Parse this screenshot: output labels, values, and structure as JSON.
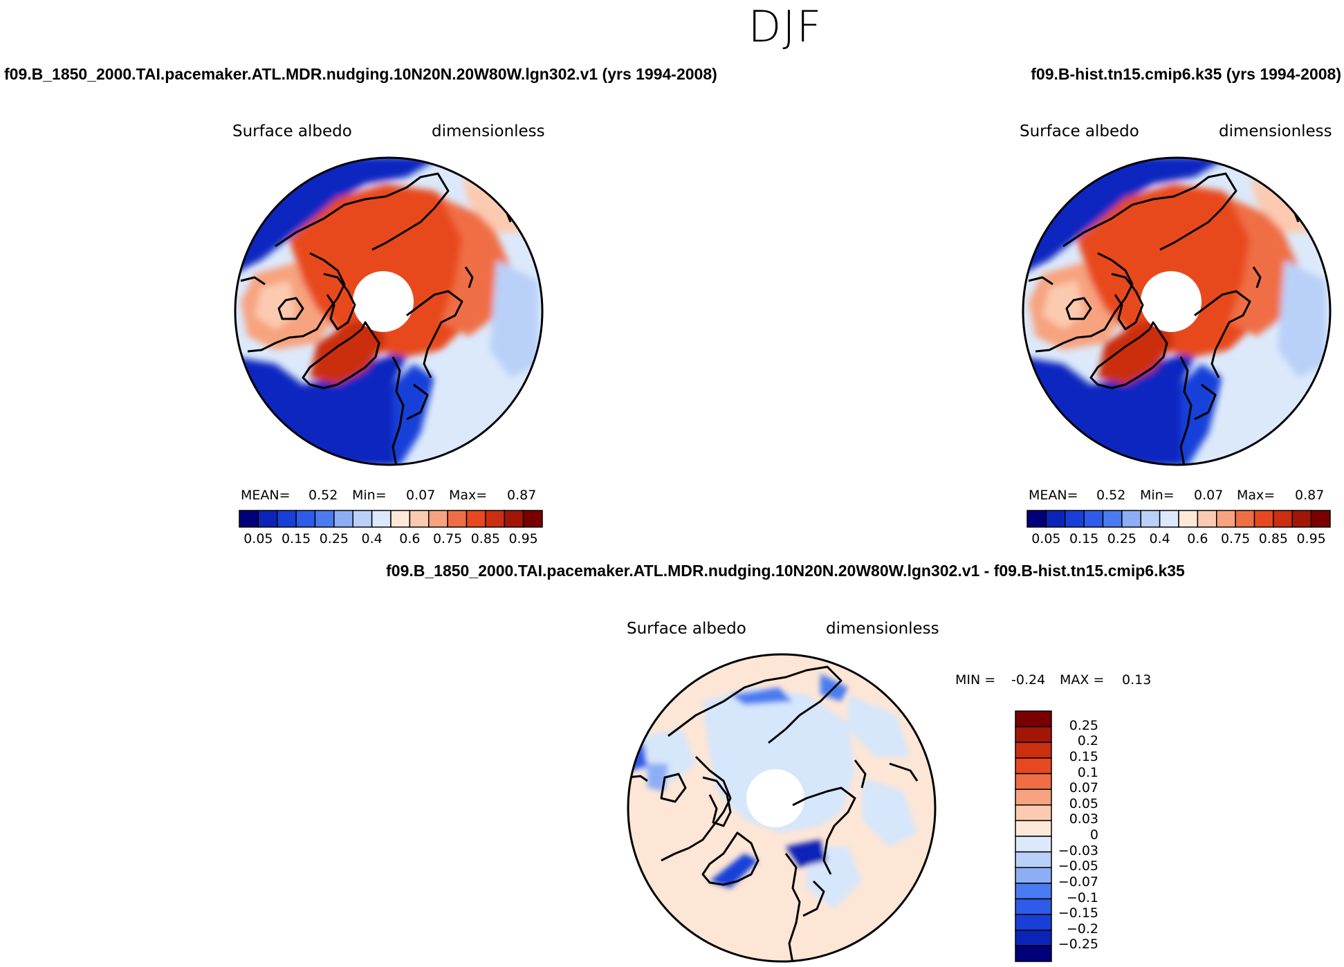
{
  "season": "DJF",
  "panels": [
    {
      "case": "f09.B_1850_2000.TAI.pacemaker.ATL.MDR.nudging.10N20N.20W80W.lgn302.v1 (yrs 1994-2008)",
      "variable": "Surface albedo",
      "units": "dimensionless",
      "stats": {
        "mean_label": "MEAN=",
        "mean": "0.52",
        "min_label": "Min=",
        "min": "0.07",
        "max_label": "Max=",
        "max": "0.87"
      }
    },
    {
      "case": "f09.B-hist.tn15.cmip6.k35 (yrs 1994-2008)",
      "variable": "Surface albedo",
      "units": "dimensionless",
      "stats": {
        "mean_label": "MEAN=",
        "mean": "0.52",
        "min_label": "Min=",
        "min": "0.07",
        "max_label": "Max=",
        "max": "0.87"
      }
    }
  ],
  "diff_panel": {
    "case": "f09.B_1850_2000.TAI.pacemaker.ATL.MDR.nudging.10N20N.20W80W.lgn302.v1 - f09.B-hist.tn15.cmip6.k35",
    "variable": "Surface albedo",
    "units": "dimensionless",
    "stats": {
      "min_label": "MIN =",
      "min": "-0.24",
      "max_label": "MAX =",
      "max": "0.13"
    }
  },
  "colors": {
    "abs_colorbar": [
      "#00007a",
      "#0b24b8",
      "#1840d8",
      "#2c5ce8",
      "#4a7bf0",
      "#8caef5",
      "#b9d0f8",
      "#dce9fb",
      "#fee9d9",
      "#fbcab0",
      "#f7a37f",
      "#f06e45",
      "#e8481f",
      "#cb2f10",
      "#a31606",
      "#7a0000"
    ],
    "diff_colorbar": [
      "#00007a",
      "#0b24b8",
      "#1840d8",
      "#2c5ce8",
      "#4a7bf0",
      "#8caef5",
      "#b9d0f8",
      "#dce9fb",
      "#fee9d9",
      "#fbcab0",
      "#f7a37f",
      "#f06e45",
      "#e8481f",
      "#cb2f10",
      "#a31606",
      "#7a0000"
    ],
    "ocean_blue": "#0b28c0",
    "land_orange": "#e8481f",
    "diff_background": "#fde6d6",
    "diff_light_blue": "#d6e6fb"
  },
  "chart_data": [
    {
      "type": "heatmap",
      "projection": "north-polar-stereographic",
      "title": "Surface albedo",
      "units": "dimensionless",
      "colorbar_levels": [
        0.05,
        0.1,
        0.15,
        0.2,
        0.25,
        0.3,
        0.4,
        0.5,
        0.6,
        0.7,
        0.75,
        0.8,
        0.85,
        0.9,
        0.95
      ],
      "colorbar_tick_labels": [
        "0.05",
        "0.15",
        "0.25",
        "0.4",
        "0.6",
        "0.75",
        "0.85",
        "0.95"
      ],
      "mean": 0.52,
      "min": 0.07,
      "max": 0.87
    },
    {
      "type": "heatmap",
      "projection": "north-polar-stereographic",
      "title": "Surface albedo",
      "units": "dimensionless",
      "colorbar_levels": [
        0.05,
        0.1,
        0.15,
        0.2,
        0.25,
        0.3,
        0.4,
        0.5,
        0.6,
        0.7,
        0.75,
        0.8,
        0.85,
        0.9,
        0.95
      ],
      "colorbar_tick_labels": [
        "0.05",
        "0.15",
        "0.25",
        "0.4",
        "0.6",
        "0.75",
        "0.85",
        "0.95"
      ],
      "mean": 0.52,
      "min": 0.07,
      "max": 0.87
    },
    {
      "type": "heatmap",
      "projection": "north-polar-stereographic",
      "title": "Surface albedo",
      "units": "dimensionless",
      "colorbar_levels": [
        -0.25,
        -0.2,
        -0.15,
        -0.1,
        -0.07,
        -0.05,
        -0.03,
        0,
        0.03,
        0.05,
        0.07,
        0.1,
        0.15,
        0.2,
        0.25
      ],
      "colorbar_tick_labels": [
        "0.25",
        "0.2",
        "0.15",
        "0.1",
        "0.07",
        "0.05",
        "0.03",
        "0",
        "−0.03",
        "−0.05",
        "−0.07",
        "−0.1",
        "−0.15",
        "−0.2",
        "−0.25"
      ],
      "min": -0.24,
      "max": 0.13
    }
  ]
}
